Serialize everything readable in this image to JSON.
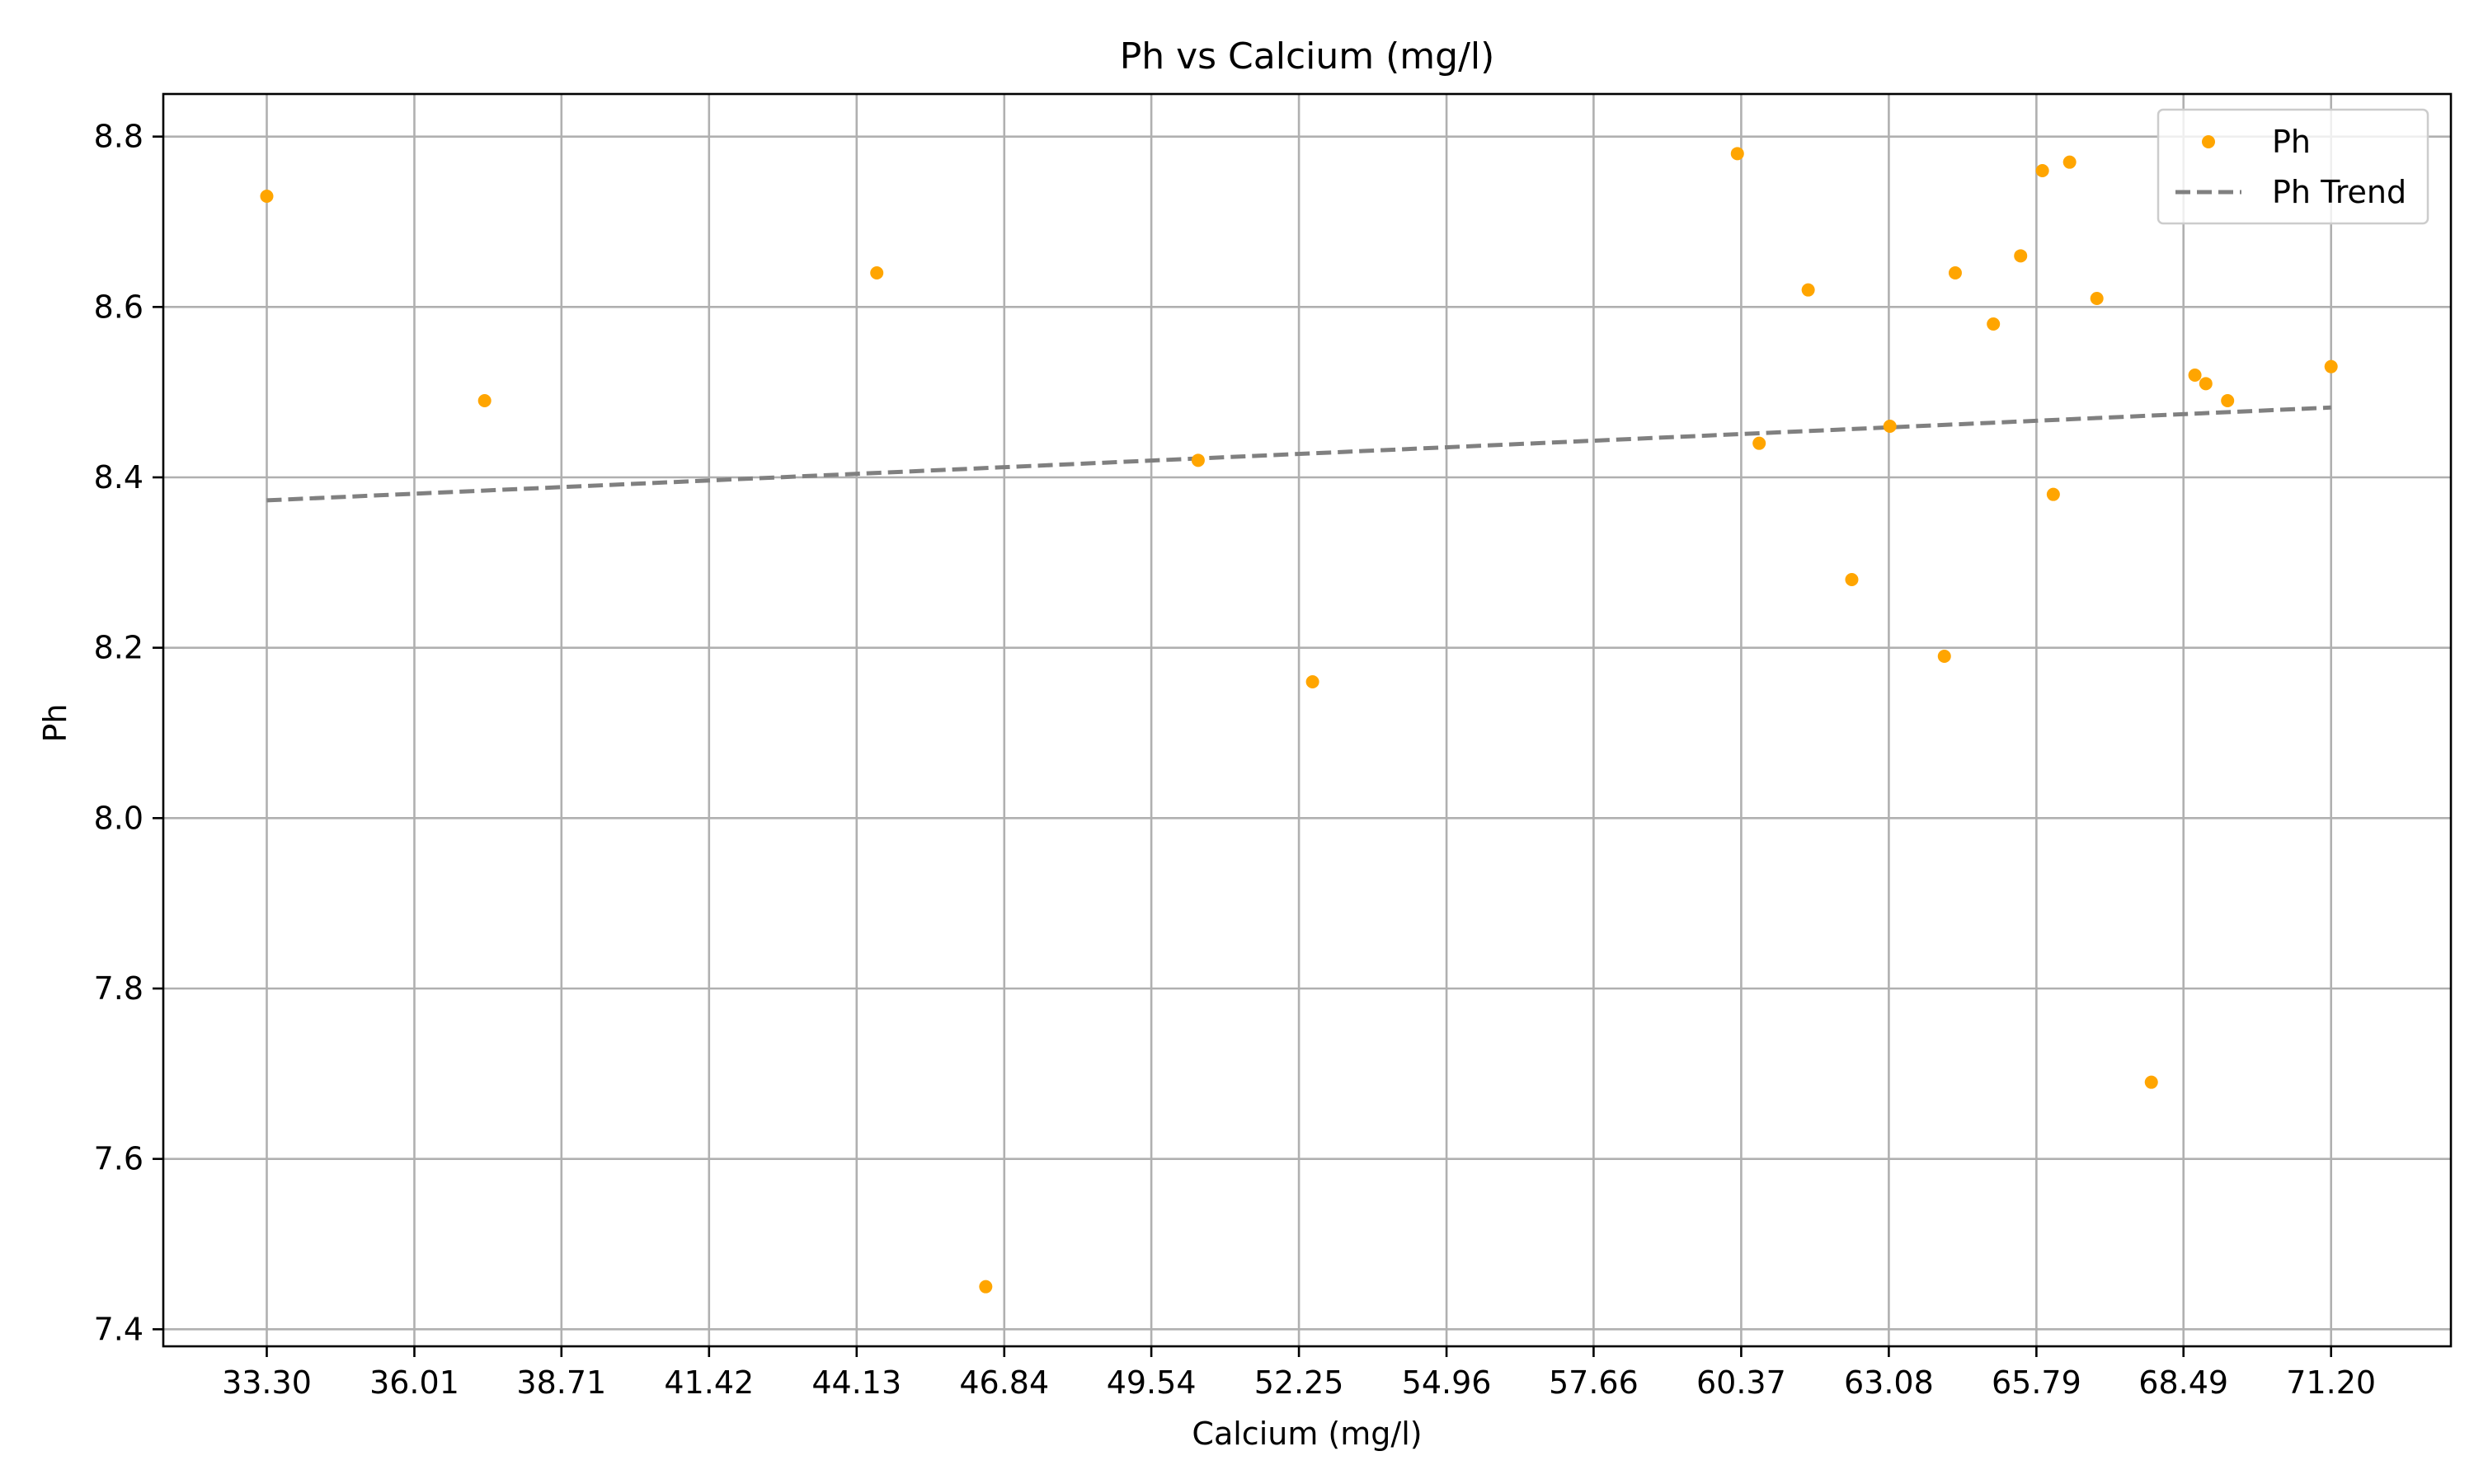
{
  "chart_data": {
    "type": "scatter",
    "title": "Ph vs Calcium (mg/l)",
    "xlabel": "Calcium (mg/l)",
    "ylabel": "Ph",
    "xlim": [
      31.4,
      73.4
    ],
    "ylim": [
      7.38,
      8.85
    ],
    "x_ticks": [
      33.3,
      36.01,
      38.71,
      41.42,
      44.13,
      46.84,
      49.54,
      52.25,
      54.96,
      57.66,
      60.37,
      63.08,
      65.79,
      68.49,
      71.2
    ],
    "x_tick_labels": [
      "33.30",
      "36.01",
      "38.71",
      "41.42",
      "44.13",
      "46.84",
      "49.54",
      "52.25",
      "54.96",
      "57.66",
      "60.37",
      "63.08",
      "65.79",
      "68.49",
      "71.20"
    ],
    "y_ticks": [
      7.4,
      7.6,
      7.8,
      8.0,
      8.2,
      8.4,
      8.6,
      8.8
    ],
    "y_tick_labels": [
      "7.4",
      "7.6",
      "7.8",
      "8.0",
      "8.2",
      "8.4",
      "8.6",
      "8.8"
    ],
    "grid": true,
    "legend_position": "top-right",
    "series": [
      {
        "name": "Ph",
        "kind": "scatter",
        "color": "#ffa500",
        "x": [
          33.3,
          37.3,
          44.5,
          46.5,
          50.4,
          52.5,
          60.3,
          60.7,
          61.6,
          62.4,
          63.1,
          64.1,
          64.3,
          65.0,
          65.5,
          65.9,
          66.1,
          66.4,
          66.9,
          67.9,
          68.7,
          68.9,
          69.3,
          71.2
        ],
        "y": [
          8.73,
          8.49,
          8.64,
          7.45,
          8.42,
          8.16,
          8.78,
          8.44,
          8.62,
          8.28,
          8.46,
          8.19,
          8.64,
          8.58,
          8.66,
          8.76,
          8.38,
          8.77,
          8.61,
          7.69,
          8.52,
          8.51,
          8.49,
          8.53
        ]
      },
      {
        "name": "Ph Trend",
        "kind": "line",
        "style": "dashed",
        "color": "#808080",
        "x": [
          33.3,
          71.2
        ],
        "y": [
          8.373,
          8.482
        ]
      }
    ]
  }
}
